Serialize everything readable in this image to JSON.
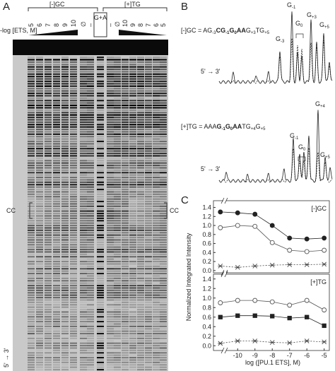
{
  "panel_a": {
    "letter": "A",
    "group_left": "[-]GC",
    "group_right": "[+]TG",
    "axis_label": "-log [ETS, M]",
    "lanes": [
      "5",
      "6",
      "7",
      "8",
      "9",
      "10",
      "∅",
      "–",
      "G+A",
      "–",
      "∅",
      "10",
      "9",
      "8",
      "7",
      "6",
      "5"
    ],
    "cc_left": "CC",
    "cc_right": "CC",
    "direction": "5' → 3'"
  },
  "panel_b": {
    "letter": "B",
    "traces": [
      {
        "prefix": "[-]GC = ",
        "segments": [
          {
            "text": "AG",
            "sub": "-3"
          },
          {
            "text": "CG",
            "sub": "-1",
            "bold": true
          },
          {
            "text": "G",
            "sub": "0",
            "bold": true
          },
          {
            "text": "AA",
            "bold": true
          },
          {
            "text": "G",
            "sub": "+3"
          },
          {
            "text": "TG",
            "sub": "+5"
          }
        ],
        "peaks": [
          {
            "text": "G",
            "sub": "-3"
          },
          {
            "text": "G",
            "sub": "-1"
          },
          {
            "text": "G",
            "sub": "0"
          },
          {
            "text": "G",
            "sub": "+3"
          },
          {
            "text": "G",
            "sub": "+5"
          }
        ],
        "direction": "5' → 3'"
      },
      {
        "prefix": "[+]TG = ",
        "segments": [
          {
            "text": "AAA"
          },
          {
            "text": "G",
            "sub": "-1",
            "bold": true
          },
          {
            "text": "G",
            "sub": "0",
            "bold": true
          },
          {
            "text": "AA",
            "bold": true
          },
          {
            "text": "TG",
            "sub": "+4"
          },
          {
            "text": "G",
            "sub": "+5"
          }
        ],
        "peaks": [
          {
            "text": "G",
            "sub": "+4"
          },
          {
            "text": "G",
            "sub": "-1"
          },
          {
            "text": "G",
            "sub": "0"
          },
          {
            "text": "G",
            "sub": "+5"
          }
        ],
        "direction": "5' → 3'"
      }
    ]
  },
  "panel_c": {
    "letter": "C"
  },
  "chart_data": [
    {
      "type": "scatter",
      "label": "[-]GC",
      "ylabel": "Normalized Integrated Intensity",
      "x": [
        -11,
        -10,
        -9,
        -8,
        -7,
        -6,
        -5
      ],
      "xlim": [
        -11.4,
        -4.7
      ],
      "ylim": [
        -0.05,
        1.55
      ],
      "yticks": [
        {
          "value": 0,
          "label": "0.0"
        },
        {
          "value": 0.2,
          "label": "0.2"
        },
        {
          "value": 0.4,
          "label": "0.4"
        },
        {
          "value": 0.6,
          "label": "0.6"
        },
        {
          "value": 0.8,
          "label": "0.8"
        },
        {
          "value": 1.0,
          "label": "1.0"
        },
        {
          "value": 1.2,
          "label": "1.2"
        },
        {
          "value": 1.4,
          "label": "1.4"
        }
      ],
      "series": [
        {
          "marker": "filled-circle",
          "line": "solid",
          "color": "#222222",
          "values": [
            1.3,
            1.28,
            1.25,
            1.0,
            0.72,
            0.7,
            0.72
          ]
        },
        {
          "marker": "open-circle",
          "line": "solid",
          "color": "#555555",
          "values": [
            0.95,
            1.0,
            0.98,
            0.62,
            0.45,
            0.42,
            0.45
          ]
        },
        {
          "marker": "star",
          "line": "dotted",
          "color": "#444444",
          "values": [
            0.1,
            0.07,
            0.1,
            0.12,
            0.13,
            0.13,
            0.14
          ]
        }
      ]
    },
    {
      "type": "scatter",
      "label": "[+]TG",
      "xlabel": "log ([PU.1 ETS], M)",
      "x": [
        -11,
        -10,
        -9,
        -8,
        -7,
        -6,
        -5
      ],
      "xlim": [
        -11.4,
        -4.7
      ],
      "ylim": [
        -0.1,
        1.5
      ],
      "xticks": [
        -10,
        -9,
        -8,
        -7,
        -6,
        -5
      ],
      "yticks": [
        {
          "value": 0,
          "label": "0.0"
        },
        {
          "value": 0.2,
          "label": "0.2"
        },
        {
          "value": 0.4,
          "label": "0.4"
        },
        {
          "value": 0.6,
          "label": "0.6"
        },
        {
          "value": 0.8,
          "label": "0.8"
        },
        {
          "value": 1.0,
          "label": "1.0"
        },
        {
          "value": 1.2,
          "label": "1.2"
        },
        {
          "value": 1.4,
          "label": "1.4"
        }
      ],
      "series": [
        {
          "marker": "open-circle",
          "line": "solid",
          "color": "#555555",
          "values": [
            0.9,
            0.95,
            0.95,
            0.92,
            0.85,
            0.95,
            0.75
          ]
        },
        {
          "marker": "filled-square",
          "line": "solid",
          "color": "#222222",
          "values": [
            0.6,
            0.63,
            0.63,
            0.62,
            0.58,
            0.6,
            0.42
          ]
        },
        {
          "marker": "star",
          "line": "dotted",
          "color": "#444444",
          "values": [
            0.05,
            0.1,
            0.1,
            0.07,
            0.06,
            0.1,
            0.08
          ]
        }
      ]
    }
  ]
}
